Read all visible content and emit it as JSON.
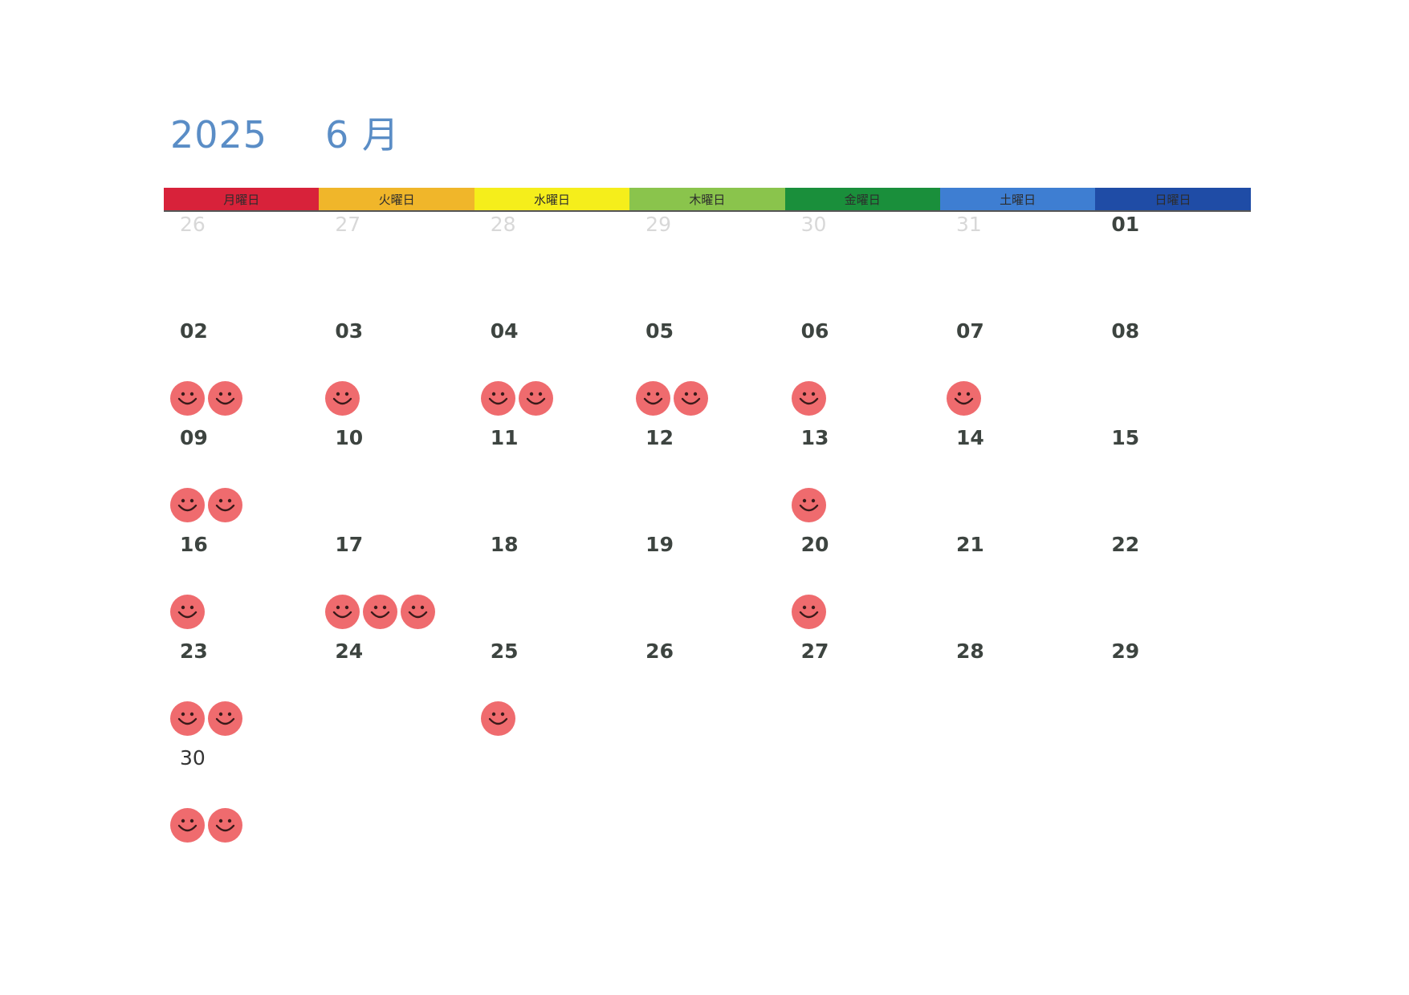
{
  "header": {
    "year": "2025",
    "month": "6 月"
  },
  "weekday_colors": [
    "#d8223a",
    "#f0b62a",
    "#f5ee1b",
    "#8ac44c",
    "#1a8f3b",
    "#3e7ed2",
    "#1f4ca6"
  ],
  "weekdays": [
    "月曜日",
    "火曜日",
    "水曜日",
    "木曜日",
    "金曜日",
    "土曜日",
    "日曜日"
  ],
  "weeks": [
    [
      {
        "day": "26",
        "style": "muted",
        "stamps": 0
      },
      {
        "day": "27",
        "style": "muted",
        "stamps": 0
      },
      {
        "day": "28",
        "style": "muted",
        "stamps": 0
      },
      {
        "day": "29",
        "style": "muted",
        "stamps": 0
      },
      {
        "day": "30",
        "style": "muted",
        "stamps": 0
      },
      {
        "day": "31",
        "style": "muted",
        "stamps": 0
      },
      {
        "day": "01",
        "style": "bold",
        "stamps": 0
      }
    ],
    [
      {
        "day": "02",
        "style": "bold",
        "stamps": 2
      },
      {
        "day": "03",
        "style": "bold",
        "stamps": 1
      },
      {
        "day": "04",
        "style": "bold",
        "stamps": 2
      },
      {
        "day": "05",
        "style": "bold",
        "stamps": 2
      },
      {
        "day": "06",
        "style": "bold",
        "stamps": 1
      },
      {
        "day": "07",
        "style": "bold",
        "stamps": 1
      },
      {
        "day": "08",
        "style": "bold",
        "stamps": 0
      }
    ],
    [
      {
        "day": "09",
        "style": "bold",
        "stamps": 2
      },
      {
        "day": "10",
        "style": "bold",
        "stamps": 0
      },
      {
        "day": "11",
        "style": "bold",
        "stamps": 0
      },
      {
        "day": "12",
        "style": "bold",
        "stamps": 0
      },
      {
        "day": "13",
        "style": "bold",
        "stamps": 1
      },
      {
        "day": "14",
        "style": "bold",
        "stamps": 0
      },
      {
        "day": "15",
        "style": "bold",
        "stamps": 0
      }
    ],
    [
      {
        "day": "16",
        "style": "bold",
        "stamps": 1
      },
      {
        "day": "17",
        "style": "bold",
        "stamps": 3
      },
      {
        "day": "18",
        "style": "bold",
        "stamps": 0
      },
      {
        "day": "19",
        "style": "bold",
        "stamps": 0
      },
      {
        "day": "20",
        "style": "bold",
        "stamps": 1
      },
      {
        "day": "21",
        "style": "bold",
        "stamps": 0
      },
      {
        "day": "22",
        "style": "bold",
        "stamps": 0
      }
    ],
    [
      {
        "day": "23",
        "style": "bold",
        "stamps": 2
      },
      {
        "day": "24",
        "style": "bold",
        "stamps": 0
      },
      {
        "day": "25",
        "style": "bold",
        "stamps": 1
      },
      {
        "day": "26",
        "style": "bold",
        "stamps": 0
      },
      {
        "day": "27",
        "style": "bold",
        "stamps": 0
      },
      {
        "day": "28",
        "style": "bold",
        "stamps": 0
      },
      {
        "day": "29",
        "style": "bold",
        "stamps": 0
      }
    ],
    [
      {
        "day": "30",
        "style": "plain",
        "stamps": 2
      },
      {
        "day": "",
        "style": "plain",
        "stamps": 0
      },
      {
        "day": "",
        "style": "plain",
        "stamps": 0
      },
      {
        "day": "",
        "style": "plain",
        "stamps": 0
      },
      {
        "day": "",
        "style": "plain",
        "stamps": 0
      },
      {
        "day": "",
        "style": "plain",
        "stamps": 0
      },
      {
        "day": "",
        "style": "plain",
        "stamps": 0
      }
    ]
  ]
}
